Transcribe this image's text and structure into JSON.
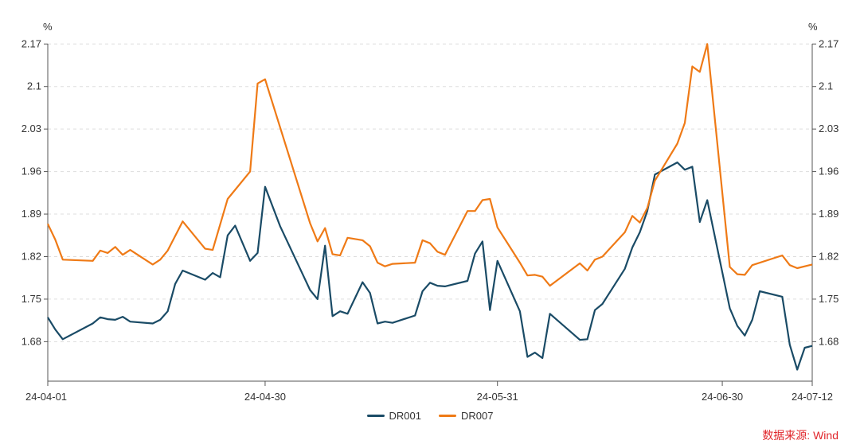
{
  "chart_data": {
    "type": "line",
    "left_unit": "%",
    "right_unit": "%",
    "yticks": [
      "1.68",
      "1.75",
      "1.82",
      "1.89",
      "1.96",
      "2.03",
      "2.1",
      "2.17"
    ],
    "ylim": [
      1.615,
      2.19
    ],
    "xticks": [
      {
        "label": "24-04-01",
        "x": 0
      },
      {
        "label": "24-04-30",
        "x": 29
      },
      {
        "label": "24-05-31",
        "x": 60
      },
      {
        "label": "24-06-30",
        "x": 90
      },
      {
        "label": "24-07-12",
        "x": 102
      }
    ],
    "xlim": [
      0,
      102
    ],
    "grid": true,
    "legend_position": "bottom-center",
    "source": "数据来源: Wind",
    "series": [
      {
        "name": "DR001",
        "color": "#1a4b66",
        "points": [
          [
            0,
            1.72
          ],
          [
            1,
            1.7
          ],
          [
            2,
            1.684
          ],
          [
            6,
            1.71
          ],
          [
            7,
            1.72
          ],
          [
            8,
            1.717
          ],
          [
            9,
            1.716
          ],
          [
            10,
            1.721
          ],
          [
            11,
            1.713
          ],
          [
            14,
            1.71
          ],
          [
            15,
            1.716
          ],
          [
            16,
            1.73
          ],
          [
            17,
            1.775
          ],
          [
            18,
            1.797
          ],
          [
            21,
            1.782
          ],
          [
            22,
            1.793
          ],
          [
            23,
            1.786
          ],
          [
            24,
            1.855
          ],
          [
            25,
            1.871
          ],
          [
            27,
            1.813
          ],
          [
            28,
            1.826
          ],
          [
            29,
            1.935
          ],
          [
            31,
            1.87
          ],
          [
            35,
            1.765
          ],
          [
            36,
            1.75
          ],
          [
            37,
            1.838
          ],
          [
            38,
            1.722
          ],
          [
            39,
            1.73
          ],
          [
            40,
            1.726
          ],
          [
            42,
            1.778
          ],
          [
            43,
            1.76
          ],
          [
            44,
            1.71
          ],
          [
            45,
            1.713
          ],
          [
            46,
            1.711
          ],
          [
            49,
            1.723
          ],
          [
            50,
            1.763
          ],
          [
            51,
            1.777
          ],
          [
            52,
            1.772
          ],
          [
            53,
            1.771
          ],
          [
            56,
            1.78
          ],
          [
            57,
            1.825
          ],
          [
            58,
            1.845
          ],
          [
            59,
            1.732
          ],
          [
            60,
            1.813
          ],
          [
            63,
            1.73
          ],
          [
            64,
            1.655
          ],
          [
            65,
            1.662
          ],
          [
            66,
            1.653
          ],
          [
            67,
            1.726
          ],
          [
            71,
            1.683
          ],
          [
            72,
            1.684
          ],
          [
            73,
            1.732
          ],
          [
            74,
            1.742
          ],
          [
            77,
            1.8
          ],
          [
            78,
            1.835
          ],
          [
            79,
            1.86
          ],
          [
            80,
            1.895
          ],
          [
            81,
            1.955
          ],
          [
            84,
            1.975
          ],
          [
            85,
            1.963
          ],
          [
            86,
            1.968
          ],
          [
            87,
            1.877
          ],
          [
            88,
            1.913
          ],
          [
            91,
            1.735
          ],
          [
            92,
            1.706
          ],
          [
            93,
            1.69
          ],
          [
            94,
            1.716
          ],
          [
            95,
            1.763
          ],
          [
            98,
            1.754
          ],
          [
            99,
            1.675
          ],
          [
            100,
            1.634
          ],
          [
            101,
            1.67
          ],
          [
            102,
            1.673
          ]
        ]
      },
      {
        "name": "DR007",
        "color": "#ef7a16",
        "points": [
          [
            0,
            1.874
          ],
          [
            1,
            1.848
          ],
          [
            2,
            1.815
          ],
          [
            6,
            1.813
          ],
          [
            7,
            1.83
          ],
          [
            8,
            1.826
          ],
          [
            9,
            1.836
          ],
          [
            10,
            1.823
          ],
          [
            11,
            1.831
          ],
          [
            14,
            1.807
          ],
          [
            15,
            1.815
          ],
          [
            16,
            1.83
          ],
          [
            18,
            1.878
          ],
          [
            21,
            1.833
          ],
          [
            22,
            1.831
          ],
          [
            24,
            1.915
          ],
          [
            27,
            1.96
          ],
          [
            28,
            2.105
          ],
          [
            29,
            2.112
          ],
          [
            35,
            1.875
          ],
          [
            36,
            1.845
          ],
          [
            37,
            1.867
          ],
          [
            38,
            1.824
          ],
          [
            39,
            1.822
          ],
          [
            40,
            1.851
          ],
          [
            42,
            1.847
          ],
          [
            43,
            1.837
          ],
          [
            44,
            1.81
          ],
          [
            45,
            1.804
          ],
          [
            46,
            1.808
          ],
          [
            49,
            1.81
          ],
          [
            50,
            1.847
          ],
          [
            51,
            1.842
          ],
          [
            52,
            1.828
          ],
          [
            53,
            1.823
          ],
          [
            56,
            1.895
          ],
          [
            57,
            1.895
          ],
          [
            58,
            1.913
          ],
          [
            59,
            1.915
          ],
          [
            60,
            1.868
          ],
          [
            63,
            1.81
          ],
          [
            64,
            1.789
          ],
          [
            65,
            1.79
          ],
          [
            66,
            1.787
          ],
          [
            67,
            1.772
          ],
          [
            71,
            1.809
          ],
          [
            72,
            1.797
          ],
          [
            73,
            1.815
          ],
          [
            74,
            1.82
          ],
          [
            77,
            1.86
          ],
          [
            78,
            1.887
          ],
          [
            79,
            1.876
          ],
          [
            80,
            1.9
          ],
          [
            81,
            1.945
          ],
          [
            84,
            2.006
          ],
          [
            85,
            2.04
          ],
          [
            86,
            2.133
          ],
          [
            87,
            2.124
          ],
          [
            88,
            2.17
          ],
          [
            91,
            1.803
          ],
          [
            92,
            1.791
          ],
          [
            93,
            1.79
          ],
          [
            94,
            1.806
          ],
          [
            98,
            1.822
          ],
          [
            99,
            1.806
          ],
          [
            100,
            1.801
          ],
          [
            102,
            1.807
          ]
        ]
      }
    ]
  }
}
